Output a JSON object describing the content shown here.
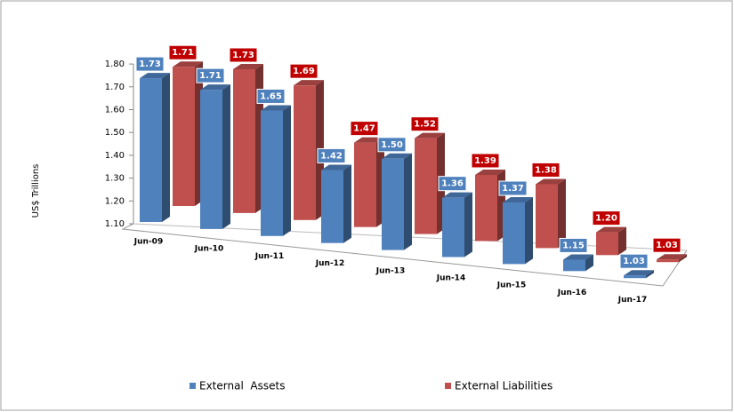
{
  "chart_data": {
    "type": "bar3d",
    "y_label": "US$ Trillions",
    "categories": [
      "Jun-09",
      "Jun-10",
      "Jun-11",
      "Jun-12",
      "Jun-13",
      "Jun-14",
      "Jun-15",
      "Jun-16",
      "Jun-17"
    ],
    "series": [
      {
        "name": "External  Assets",
        "color": "#4f81bd",
        "label_color": "#4f81bd",
        "values": [
          1.73,
          1.71,
          1.65,
          1.42,
          1.5,
          1.36,
          1.37,
          1.15,
          1.03
        ],
        "value_labels": [
          "1.73",
          "1.71",
          "1.65",
          "1.42",
          "1.50",
          "1.36",
          "1.37",
          "1.15",
          "1.03"
        ]
      },
      {
        "name": "External Liabilities",
        "color": "#c0504d",
        "label_color": "#c00000",
        "values": [
          1.71,
          1.73,
          1.69,
          1.47,
          1.52,
          1.39,
          1.38,
          1.2,
          1.03
        ],
        "value_labels": [
          "1.71",
          "1.73",
          "1.69",
          "1.47",
          "1.52",
          "1.39",
          "1.38",
          "1.20",
          "1.03"
        ]
      }
    ],
    "ylim": [
      1.1,
      1.8
    ],
    "yticks": [
      {
        "value": 1.1,
        "label": "1.10"
      },
      {
        "value": 1.2,
        "label": "1.20"
      },
      {
        "value": 1.3,
        "label": "1.30"
      },
      {
        "value": 1.4,
        "label": "1.40"
      },
      {
        "value": 1.5,
        "label": "1.50"
      },
      {
        "value": 1.6,
        "label": "1.60"
      },
      {
        "value": 1.7,
        "label": "1.70"
      },
      {
        "value": 1.8,
        "label": "1.80"
      }
    ],
    "legend": "bottom"
  }
}
